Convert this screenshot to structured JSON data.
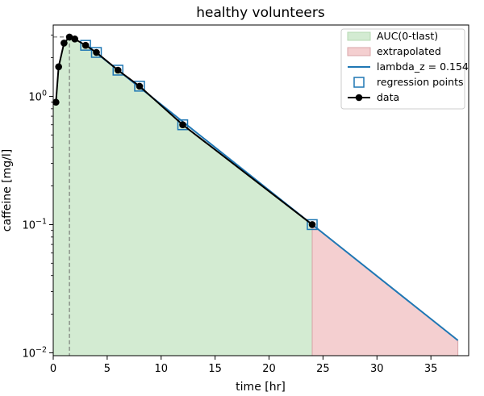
{
  "chart_data": {
    "type": "line",
    "title": "healthy volunteers",
    "xlabel": "time [hr]",
    "ylabel": "caffeine [mg/l]",
    "xlim": [
      0,
      38.5
    ],
    "ylim": [
      0.0095,
      3.6
    ],
    "yscale": "log",
    "grid": false,
    "legend_position": "top-right",
    "x_ticks": [
      0,
      5,
      10,
      15,
      20,
      25,
      30,
      35
    ],
    "x_tick_labels": [
      "0",
      "5",
      "10",
      "15",
      "20",
      "25",
      "30",
      "35"
    ],
    "y_ticks": [
      0.01,
      0.1,
      1
    ],
    "y_tick_labels": [
      {
        "base": "10",
        "exp": "−2"
      },
      {
        "base": "10",
        "exp": "−1"
      },
      {
        "base": "10",
        "exp": "0"
      }
    ],
    "data": {
      "x": [
        0.25,
        0.5,
        1,
        1.5,
        2,
        3,
        4,
        6,
        8,
        12,
        24
      ],
      "y": [
        0.9,
        1.7,
        2.6,
        2.9,
        2.8,
        2.5,
        2.2,
        1.6,
        1.2,
        0.6,
        0.1
      ]
    },
    "regression_points": {
      "x": [
        3,
        4,
        6,
        8,
        12,
        24
      ],
      "y": [
        2.5,
        2.2,
        1.6,
        1.2,
        0.6,
        0.1
      ]
    },
    "lambda_z": {
      "value": 0.154,
      "x_start": 3,
      "x_end": 37.5
    },
    "cmax": {
      "t": 1.5,
      "c": 2.9
    },
    "auc_tlast_range": [
      0,
      24
    ],
    "extrapolated_range": [
      24,
      37.5
    ],
    "legend": [
      {
        "key": "auc",
        "label": "AUC(0-tlast)"
      },
      {
        "key": "extrap",
        "label": "extrapolated"
      },
      {
        "key": "lambda",
        "label": "lambda_z = 0.154"
      },
      {
        "key": "regression",
        "label": "regression points"
      },
      {
        "key": "data",
        "label": "data"
      }
    ],
    "colors": {
      "auc_fill": "#d3ebd2",
      "auc_edge": "#b5d9b3",
      "extrap_fill": "#f4cfd0",
      "extrap_edge": "#d9a6a8",
      "lambda_line": "#1f77b4",
      "regression_marker": "#1f77b4",
      "data": "#000000"
    }
  }
}
